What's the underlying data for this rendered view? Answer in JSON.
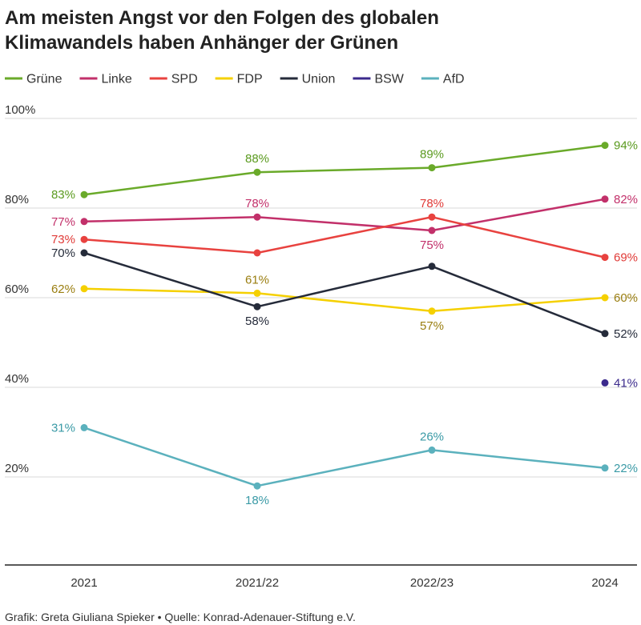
{
  "chart_data": {
    "type": "line",
    "title_lines": [
      "Am meisten Angst vor den Folgen des globalen",
      "Klimawandels haben Anhänger der Grünen"
    ],
    "categories": [
      "2021",
      "2021/22",
      "2022/23",
      "2024"
    ],
    "ylim": [
      0,
      100
    ],
    "yticks": [
      {
        "value": 100,
        "label": "100%"
      },
      {
        "value": 80,
        "label": "80%"
      },
      {
        "value": 60,
        "label": "60%"
      },
      {
        "value": 40,
        "label": "40%"
      },
      {
        "value": 20,
        "label": "20%"
      }
    ],
    "grid": true,
    "legend_position": "top",
    "series": [
      {
        "name": "Grüne",
        "color": "#6aaa2a",
        "label_color": "#5a9a1e",
        "values": [
          83,
          88,
          89,
          94
        ],
        "labels": [
          "83%",
          "88%",
          "89%",
          "94%"
        ],
        "label_pos": [
          "left",
          "above",
          "above",
          "right"
        ]
      },
      {
        "name": "Linke",
        "color": "#c2306a",
        "label_color": "#c2306a",
        "values": [
          77,
          78,
          75,
          82
        ],
        "labels": [
          "77%",
          "78%",
          "75%",
          "82%"
        ],
        "label_pos": [
          "left",
          "above",
          "below",
          "right"
        ]
      },
      {
        "name": "SPD",
        "color": "#e8423f",
        "label_color": "#e03a37",
        "values": [
          73,
          70,
          78,
          69
        ],
        "labels": [
          "73%",
          "",
          "78%",
          "69%"
        ],
        "label_pos": [
          "left",
          "above",
          "above",
          "right"
        ]
      },
      {
        "name": "FDP",
        "color": "#f5d000",
        "label_color": "#9a7e10",
        "values": [
          62,
          61,
          57,
          60
        ],
        "labels": [
          "62%",
          "61%",
          "57%",
          "60%"
        ],
        "label_pos": [
          "left",
          "above",
          "below",
          "right"
        ]
      },
      {
        "name": "Union",
        "color": "#252b3a",
        "label_color": "#252b3a",
        "values": [
          70,
          58,
          67,
          52
        ],
        "labels": [
          "70%",
          "58%",
          "",
          "52%"
        ],
        "label_pos": [
          "left",
          "below",
          "above",
          "right"
        ]
      },
      {
        "name": "BSW",
        "color": "#3b2a8c",
        "label_color": "#3b2a8c",
        "values": [
          null,
          null,
          null,
          41
        ],
        "labels": [
          "",
          "",
          "",
          "41%"
        ],
        "label_pos": [
          "left",
          "above",
          "above",
          "right"
        ]
      },
      {
        "name": "AfD",
        "color": "#5bb1bd",
        "label_color": "#3a9aa6",
        "values": [
          31,
          18,
          26,
          22
        ],
        "labels": [
          "31%",
          "18%",
          "26%",
          "22%"
        ],
        "label_pos": [
          "left",
          "below",
          "above",
          "right"
        ]
      }
    ],
    "source": "Grafik: Greta Giuliana Spieker • Quelle: Konrad-Adenauer-Stiftung e.V."
  }
}
